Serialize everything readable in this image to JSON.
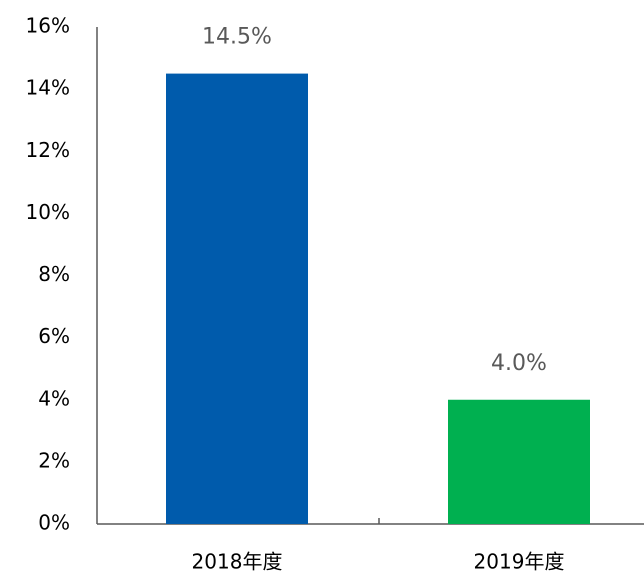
{
  "chart_data": {
    "type": "bar",
    "categories": [
      "2018年度",
      "2019年度"
    ],
    "values": [
      14.5,
      4.0
    ],
    "value_labels": [
      "14.5%",
      "4.0%"
    ],
    "colors": [
      "#005bac",
      "#00b050"
    ],
    "ylim": [
      0,
      16
    ],
    "yticks": [
      {
        "value": 0,
        "label": "0%"
      },
      {
        "value": 2,
        "label": "2%"
      },
      {
        "value": 4,
        "label": "4%"
      },
      {
        "value": 6,
        "label": "6%"
      },
      {
        "value": 8,
        "label": "8%"
      },
      {
        "value": 10,
        "label": "10%"
      },
      {
        "value": 12,
        "label": "12%"
      },
      {
        "value": 14,
        "label": "14%"
      },
      {
        "value": 16,
        "label": "16%"
      }
    ],
    "grid": false
  }
}
